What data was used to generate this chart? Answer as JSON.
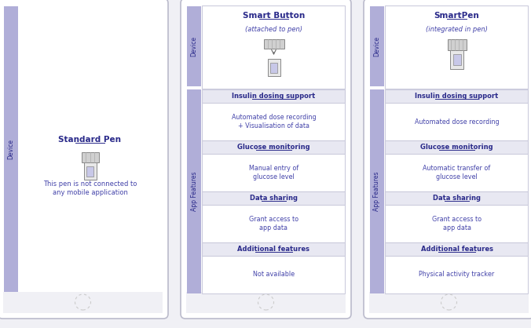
{
  "bg_color": "#f0f0f5",
  "sidebar_color": "#b0aed8",
  "header_bg": "#e8e8f2",
  "cell_bg": "#ffffff",
  "border_color": "#ccccdd",
  "text_color": "#2a2a8a",
  "body_color": "#4444aa",
  "fig_width": 6.76,
  "fig_height": 4.18,
  "phone_border": "#bbbbcc",
  "columns": [
    {
      "device_name": "Standard Pen",
      "device_subtitle": "",
      "device_desc": "This pen is not connected to\nany mobile application",
      "has_sections": false
    },
    {
      "device_name": "Smart Button",
      "device_subtitle": "(attached to pen)",
      "device_desc": "",
      "has_sections": true,
      "pen_style": "smartbutton",
      "sections": [
        {
          "label": "Insulin dosing support",
          "content": "Automated dose recording\n+ Visualisation of data"
        },
        {
          "label": "Glucose monitoring",
          "content": "Manual entry of\nglucose level"
        },
        {
          "label": "Data sharing",
          "content": "Grant access to\napp data"
        },
        {
          "label": "Additional features",
          "content": "Not available"
        }
      ]
    },
    {
      "device_name": "SmartPen",
      "device_subtitle": "(integrated in pen)",
      "device_desc": "",
      "has_sections": true,
      "pen_style": "smartpen",
      "sections": [
        {
          "label": "Insulin dosing support",
          "content": "Automated dose recording"
        },
        {
          "label": "Glucose monitoring",
          "content": "Automatic transfer of\nglucose level"
        },
        {
          "label": "Data sharing",
          "content": "Grant access to\napp data"
        },
        {
          "label": "Additional features",
          "content": "Physical activity tracker"
        }
      ]
    }
  ]
}
